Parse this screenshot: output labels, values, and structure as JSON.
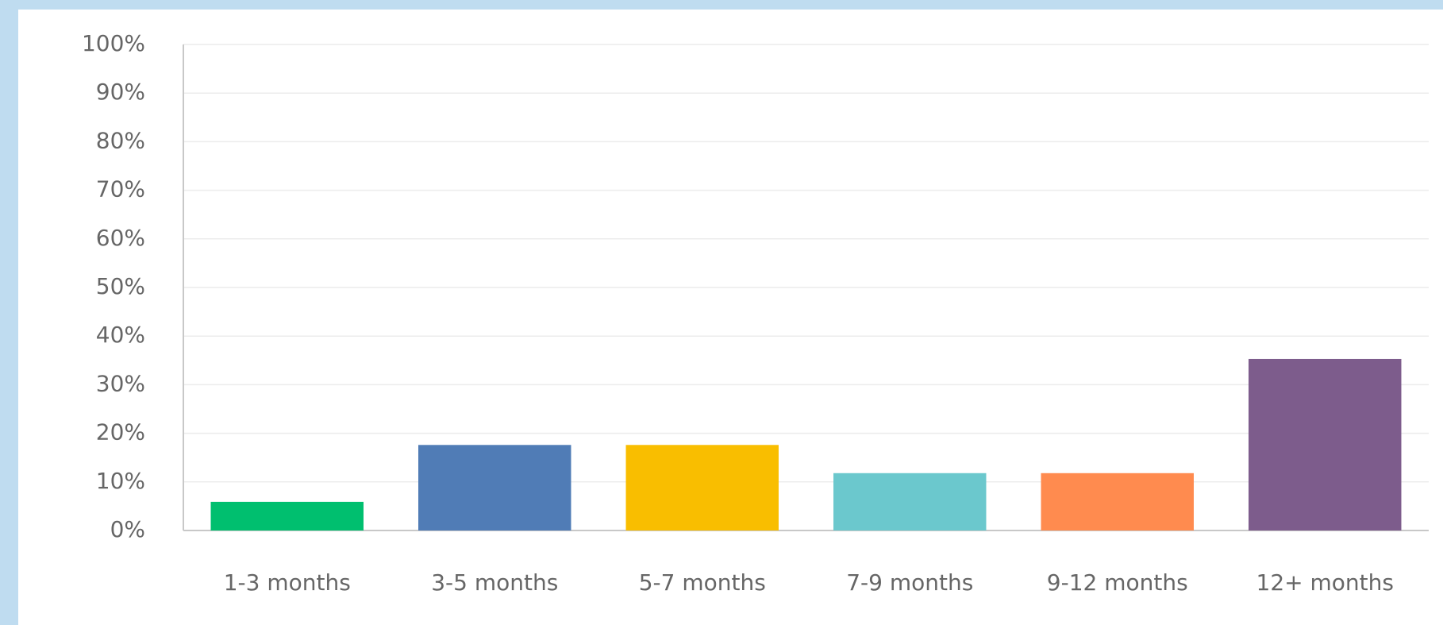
{
  "chart_data": {
    "type": "bar",
    "categories": [
      "1-3 months",
      "3-5 months",
      "5-7 months",
      "7-9 months",
      "9-12 months",
      "12+ months"
    ],
    "values": [
      5.9,
      17.6,
      17.6,
      11.8,
      11.8,
      35.3
    ],
    "colors": [
      "#00bf6f",
      "#507cb6",
      "#f9be00",
      "#6bc8cd",
      "#ff8b4f",
      "#7d5c8c"
    ],
    "ylim": [
      0,
      100
    ],
    "yticks": [
      {
        "value": 0,
        "label": "0%"
      },
      {
        "value": 10,
        "label": "10%"
      },
      {
        "value": 20,
        "label": "20%"
      },
      {
        "value": 30,
        "label": "30%"
      },
      {
        "value": 40,
        "label": "40%"
      },
      {
        "value": 50,
        "label": "50%"
      },
      {
        "value": 60,
        "label": "60%"
      },
      {
        "value": 70,
        "label": "70%"
      },
      {
        "value": 80,
        "label": "80%"
      },
      {
        "value": 90,
        "label": "90%"
      },
      {
        "value": 100,
        "label": "100%"
      }
    ],
    "grid": true
  }
}
